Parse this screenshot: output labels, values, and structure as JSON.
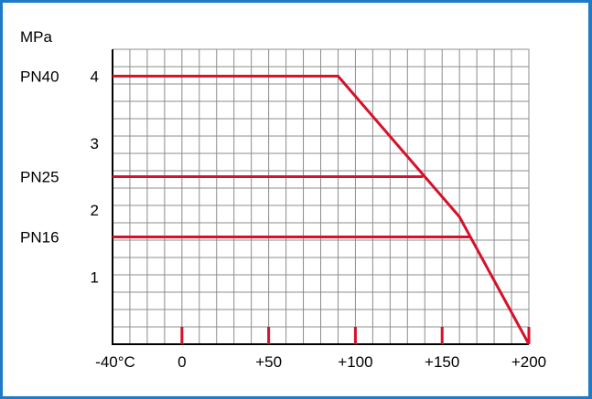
{
  "chart_data": {
    "type": "line",
    "ylabel": "MPa",
    "x_ticks": [
      "-40°C",
      "0",
      "+50",
      "+100",
      "+150",
      "+200"
    ],
    "x_tick_values": [
      -40,
      0,
      50,
      100,
      150,
      200
    ],
    "y_ticks": [
      "1",
      "2",
      "3",
      "4"
    ],
    "y_tick_values": [
      1,
      2,
      3,
      4
    ],
    "xlim": [
      -40,
      200
    ],
    "ylim": [
      0,
      4.4
    ],
    "grid": true,
    "series": [
      {
        "name": "PN40",
        "points": [
          [
            -40,
            4.0
          ],
          [
            90,
            4.0
          ],
          [
            160,
            1.9
          ],
          [
            200,
            0
          ]
        ]
      },
      {
        "name": "PN25",
        "points": [
          [
            -40,
            2.5
          ],
          [
            139,
            2.5
          ]
        ]
      },
      {
        "name": "PN16",
        "points": [
          [
            -40,
            1.6
          ],
          [
            166,
            1.6
          ]
        ]
      }
    ]
  },
  "colors": {
    "line": "#d6112b",
    "grid": "#8c8c8c",
    "frame": "#1f7ac7"
  }
}
